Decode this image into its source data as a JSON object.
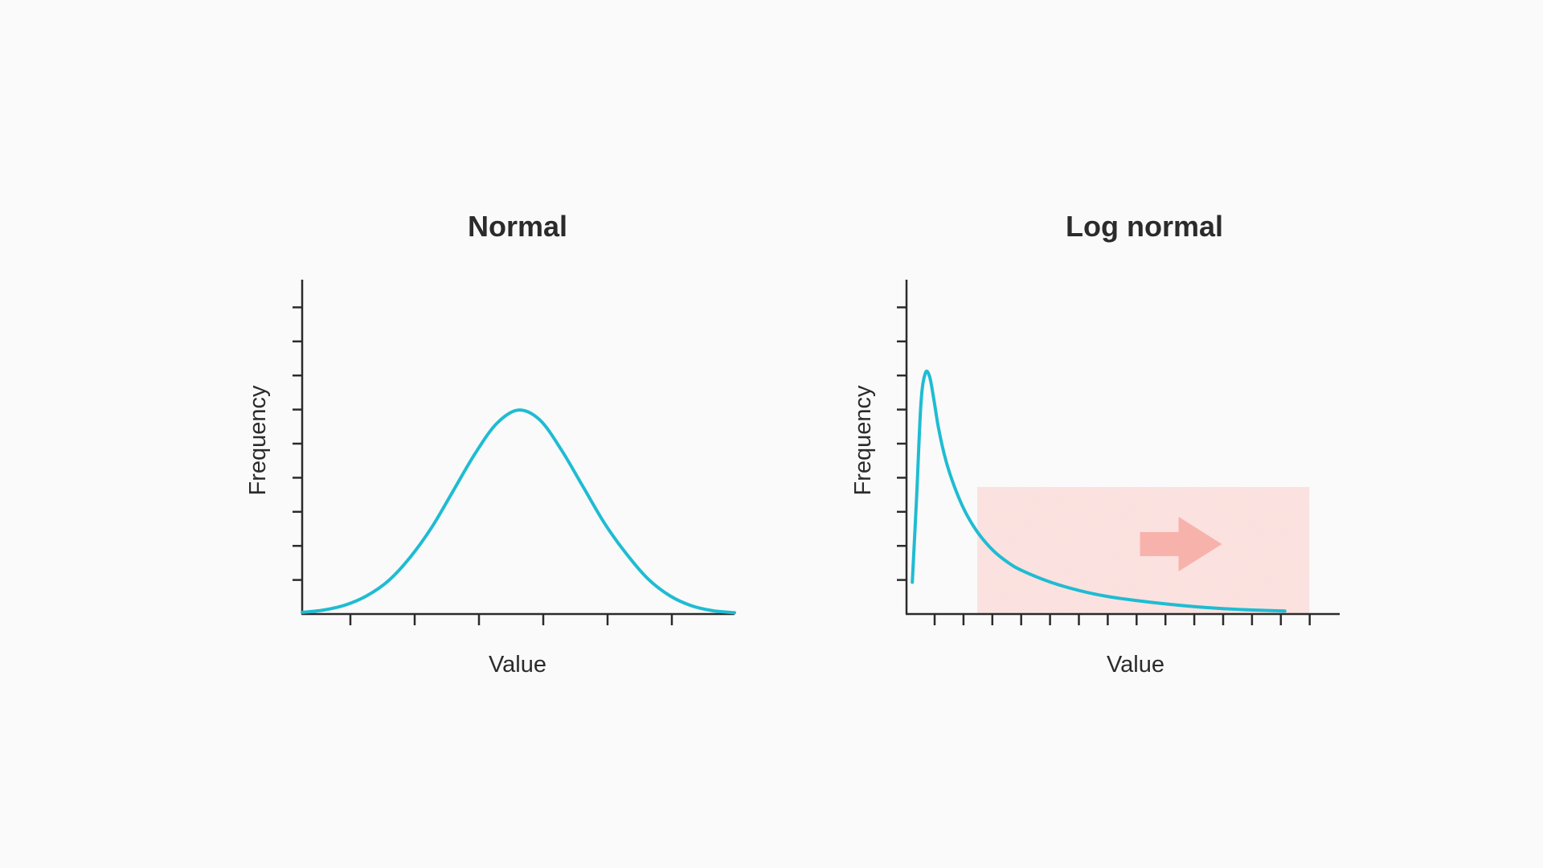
{
  "colors": {
    "curve": "#1fbcd2",
    "axis": "#2b2b2b",
    "highlight": "#fde3e1",
    "arrow": "#f7b3ab",
    "background": "#fafafa"
  },
  "chart_data": [
    {
      "type": "line",
      "title": "Normal",
      "xlabel": "Value",
      "ylabel": "Frequency",
      "x_tick_count": 6,
      "y_tick_count": 9,
      "xlim": [
        0,
        10
      ],
      "ylim": [
        0,
        10
      ],
      "grid": false,
      "series": [
        {
          "x": [
            0,
            0.5,
            1,
            1.5,
            2,
            2.5,
            3,
            3.5,
            4,
            4.5,
            5,
            5.5,
            6,
            6.5,
            7,
            7.5,
            8,
            8.5,
            9,
            9.5,
            10
          ],
          "y": [
            0.05,
            0.12,
            0.27,
            0.55,
            1.0,
            1.7,
            2.6,
            3.7,
            4.8,
            5.7,
            6.1,
            5.8,
            4.9,
            3.8,
            2.7,
            1.8,
            1.05,
            0.55,
            0.25,
            0.1,
            0.04
          ]
        }
      ]
    },
    {
      "type": "line",
      "title": "Log normal",
      "xlabel": "Value",
      "ylabel": "Frequency",
      "x_tick_count": 14,
      "y_tick_count": 9,
      "xlim": [
        0,
        15
      ],
      "ylim": [
        0,
        10
      ],
      "grid": false,
      "highlight_region": {
        "x_start": 2.45,
        "x_end": 13.95,
        "y_top": 3.8,
        "direction": "right"
      },
      "series": [
        {
          "x": [
            0.2,
            0.35,
            0.5,
            0.65,
            0.8,
            0.95,
            1.1,
            1.3,
            1.5,
            1.8,
            2.1,
            2.5,
            3,
            3.5,
            4,
            5,
            6,
            7,
            8,
            9,
            10,
            11,
            12,
            13.1
          ],
          "y": [
            0.95,
            3.5,
            6.3,
            7.2,
            7.1,
            6.4,
            5.6,
            4.8,
            4.2,
            3.5,
            2.95,
            2.4,
            1.9,
            1.55,
            1.3,
            0.95,
            0.7,
            0.52,
            0.4,
            0.3,
            0.22,
            0.16,
            0.12,
            0.09
          ]
        }
      ]
    }
  ]
}
